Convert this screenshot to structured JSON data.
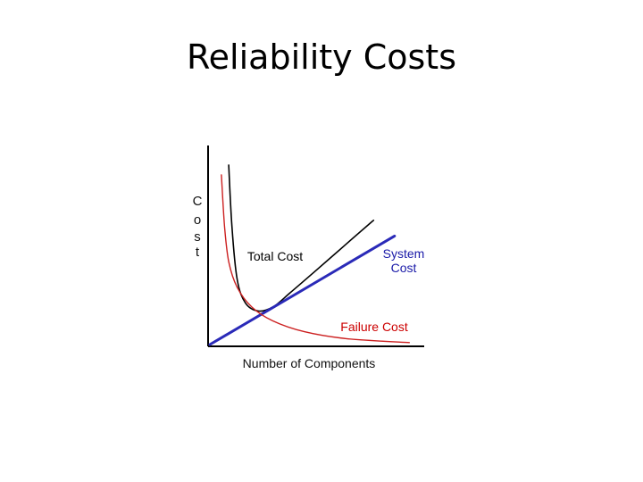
{
  "slide": {
    "title": "Reliability Costs"
  },
  "chart_data": {
    "type": "line",
    "title": "",
    "xlabel": "Number of Components",
    "ylabel": "C o s t",
    "ylabel_letters": [
      "C",
      "o",
      "s",
      "t"
    ],
    "grid": false,
    "ticks": false,
    "xlim": [
      0,
      10
    ],
    "ylim": [
      0,
      10
    ],
    "series": [
      {
        "name": "Total Cost",
        "color": "#000000",
        "label_color": "#000000",
        "label_lines": [
          "Total Cost"
        ],
        "x": [
          0.9,
          1.05,
          1.3,
          1.7,
          2.3,
          3.0,
          3.8,
          5.0,
          6.5,
          7.8
        ],
        "y": [
          9.1,
          6.0,
          3.3,
          2.1,
          1.7,
          1.9,
          2.6,
          3.7,
          5.1,
          6.3
        ]
      },
      {
        "name": "System Cost",
        "color": "#2a2ab8",
        "label_color": "#1a1aa8",
        "label_lines": [
          "System",
          "Cost"
        ],
        "x": [
          0.0,
          8.8
        ],
        "y": [
          0.0,
          5.5
        ]
      },
      {
        "name": "Failure Cost",
        "color": "#cc2020",
        "label_color": "#cc0000",
        "label_lines": [
          "Failure Cost"
        ],
        "x": [
          0.55,
          0.7,
          0.9,
          1.3,
          2.0,
          3.0,
          4.5,
          6.5,
          9.5
        ],
        "y": [
          8.6,
          6.0,
          4.2,
          2.9,
          1.9,
          1.2,
          0.65,
          0.3,
          0.1
        ]
      }
    ]
  }
}
